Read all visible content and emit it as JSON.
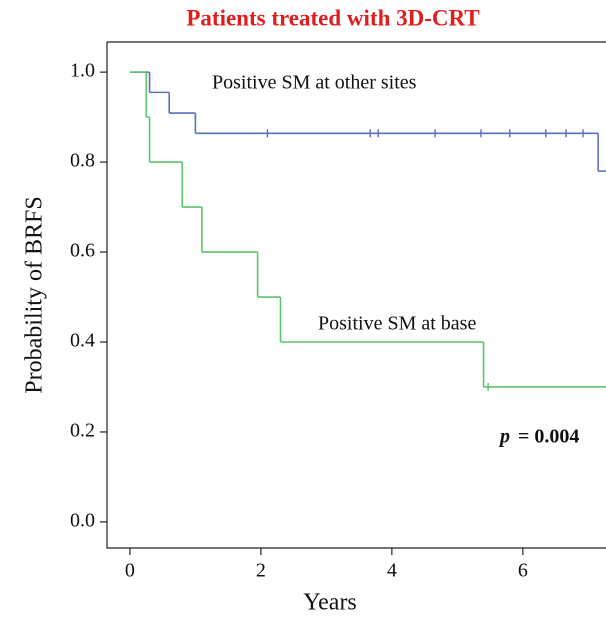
{
  "chart_data": {
    "type": "km",
    "title": "Patients treated with 3D-CRT",
    "x_label": "Years",
    "y_label": "Probability of BRFS",
    "xlim": [
      -0.35,
      7.27
    ],
    "ylim": [
      -0.058,
      1.067
    ],
    "xticks": [
      0,
      2,
      4,
      6
    ],
    "yticks": [
      {
        "value": 0,
        "label": "0.0"
      },
      0.2,
      0.4,
      0.6,
      0.8,
      {
        "value": 1,
        "label": "1.0"
      }
    ],
    "series": [
      {
        "name": "Positive SM at other sites",
        "color": "#5b6ec0",
        "x": [
          0,
          0.3,
          0.6,
          1.0,
          7.15
        ],
        "values": [
          1.0,
          0.955,
          0.909,
          0.864,
          0.78
        ],
        "censor_x": [
          2.1,
          3.67,
          3.79,
          4.66,
          5.36,
          5.8,
          6.35,
          6.66,
          6.92
        ],
        "censor_values": [
          0.864,
          0.864,
          0.864,
          0.864,
          0.864,
          0.864,
          0.864,
          0.864,
          0.864
        ]
      },
      {
        "name": "Positive SM at base",
        "color": "#5cc46a",
        "x": [
          0,
          0.25,
          0.3,
          0.8,
          1.1,
          1.95,
          2.3,
          5.4
        ],
        "values": [
          1.0,
          0.9,
          0.8,
          0.7,
          0.6,
          0.5,
          0.4,
          0.3
        ],
        "censor_x": [
          5.47
        ],
        "censor_values": [
          0.3
        ]
      }
    ],
    "p_label": "p",
    "p_value": "= 0.004"
  }
}
